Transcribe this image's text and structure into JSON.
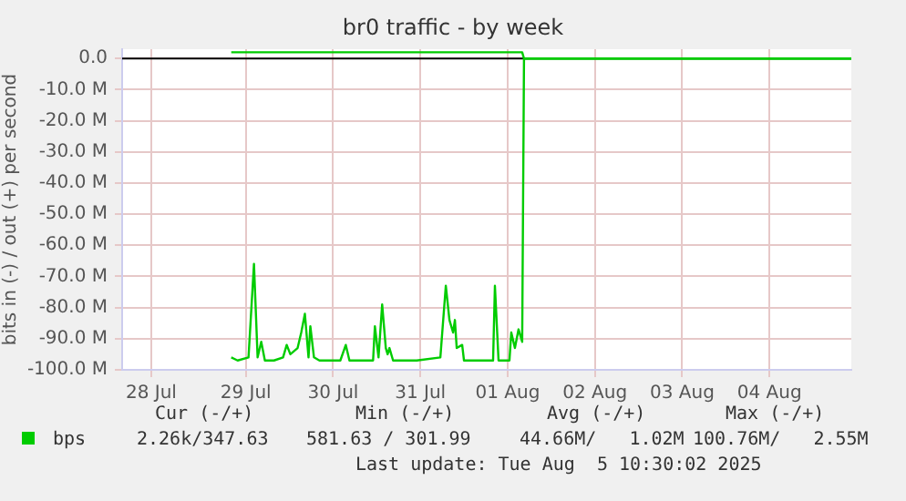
{
  "chart_data": {
    "type": "line",
    "title": "br0 traffic - by week",
    "ylabel": "bits in (-) / out (+) per second",
    "xlim": [
      "2025-07-28T02:00",
      "2025-08-05T10:30"
    ],
    "xticks": [
      {
        "value": "2025-07-28T10:00",
        "label": "28 Jul"
      },
      {
        "value": "2025-07-29T12:00",
        "label": "29 Jul"
      },
      {
        "value": "2025-07-30T12:00",
        "label": "30 Jul"
      },
      {
        "value": "2025-07-31T12:00",
        "label": "31 Jul"
      },
      {
        "value": "2025-08-01T12:00",
        "label": "01 Aug"
      },
      {
        "value": "2025-08-02T12:00",
        "label": "02 Aug"
      },
      {
        "value": "2025-08-03T12:00",
        "label": "03 Aug"
      },
      {
        "value": "2025-08-04T12:00",
        "label": "04 Aug"
      }
    ],
    "ylim": [
      -100,
      3
    ],
    "yticks": [
      {
        "value": -100,
        "label": "-100.0 M"
      },
      {
        "value": -90,
        "label": "-90.0 M"
      },
      {
        "value": -80,
        "label": "-80.0 M"
      },
      {
        "value": -70,
        "label": "-70.0 M"
      },
      {
        "value": -60,
        "label": "-60.0 M"
      },
      {
        "value": -50,
        "label": "-50.0 M"
      },
      {
        "value": -40,
        "label": "-40.0 M"
      },
      {
        "value": -30,
        "label": "-30.0 M"
      },
      {
        "value": -20,
        "label": "-20.0 M"
      },
      {
        "value": -10,
        "label": "-10.0 M"
      },
      {
        "value": 0,
        "label": "0.0"
      }
    ],
    "grid": true,
    "legend": "bottom left",
    "marker": "none",
    "line_style": "solid",
    "ref_lines": [
      {
        "axis": "y",
        "value": 0,
        "color": "#000000"
      }
    ],
    "series": [
      {
        "name": "bps",
        "color": "#00cc00",
        "x": [
          "2025-07-29T08:00",
          "2025-07-29T09:45",
          "2025-07-29T12:45",
          "2025-07-29T14:15",
          "2025-07-29T15:15",
          "2025-07-29T16:15",
          "2025-07-29T17:15",
          "2025-07-29T19:45",
          "2025-07-29T22:15",
          "2025-07-29T23:15",
          "2025-07-30T00:15",
          "2025-07-30T02:15",
          "2025-07-30T03:15",
          "2025-07-30T04:15",
          "2025-07-30T05:15",
          "2025-07-30T05:45",
          "2025-07-30T06:45",
          "2025-07-30T08:15",
          "2025-07-30T14:00",
          "2025-07-30T15:30",
          "2025-07-30T16:30",
          "2025-07-30T23:00",
          "2025-07-30T23:30",
          "2025-07-31T00:30",
          "2025-07-31T01:30",
          "2025-07-31T02:30",
          "2025-07-31T03:00",
          "2025-07-31T03:30",
          "2025-07-31T04:30",
          "2025-07-31T11:00",
          "2025-07-31T17:30",
          "2025-07-31T19:00",
          "2025-07-31T20:00",
          "2025-07-31T21:00",
          "2025-07-31T21:30",
          "2025-07-31T22:00",
          "2025-07-31T23:30",
          "2025-08-01T00:00",
          "2025-08-01T08:00",
          "2025-08-01T08:30",
          "2025-08-01T09:30",
          "2025-08-01T12:30",
          "2025-08-01T13:00",
          "2025-08-01T14:00",
          "2025-08-01T15:00",
          "2025-08-01T16:00",
          "2025-08-01T16:30",
          "2025-08-05T10:30"
        ],
        "values": [
          -96,
          -97,
          -96,
          -66,
          -96,
          -91,
          -97,
          -97,
          -96,
          -92,
          -95,
          -93,
          -88,
          -82,
          -96,
          -86,
          -96,
          -97,
          -97,
          -92,
          -97,
          -97,
          -86,
          -96,
          -79,
          -93,
          -95,
          -93,
          -97,
          -97,
          -96,
          -73,
          -84,
          -88,
          -84,
          -93,
          -92,
          -97,
          -97,
          -73,
          -97,
          -97,
          -88,
          -93,
          -87,
          -91,
          0,
          0
        ]
      },
      {
        "color": "#00cc00",
        "x": [
          "2025-07-29T08:00",
          "2025-08-01T16:00",
          "2025-08-01T16:30",
          "2025-08-05T10:30"
        ],
        "values": [
          2,
          2,
          0,
          0
        ]
      }
    ],
    "annotations": [
      "Cur (-/+)",
      "Min (-/+)",
      "Avg (-/+)",
      "Max (-/+)",
      "2.26k/347.63",
      "581.63 / 301.99",
      "44.66M/   1.02M",
      "100.76M/   2.55M",
      "Last update: Tue Aug  5 10:30:02 2025"
    ]
  }
}
